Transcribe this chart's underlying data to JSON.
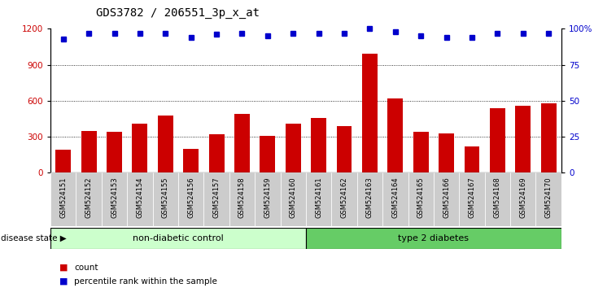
{
  "title": "GDS3782 / 206551_3p_x_at",
  "samples": [
    "GSM524151",
    "GSM524152",
    "GSM524153",
    "GSM524154",
    "GSM524155",
    "GSM524156",
    "GSM524157",
    "GSM524158",
    "GSM524159",
    "GSM524160",
    "GSM524161",
    "GSM524162",
    "GSM524163",
    "GSM524164",
    "GSM524165",
    "GSM524166",
    "GSM524167",
    "GSM524168",
    "GSM524169",
    "GSM524170"
  ],
  "counts": [
    190,
    350,
    340,
    410,
    480,
    200,
    320,
    490,
    310,
    410,
    460,
    390,
    990,
    620,
    340,
    330,
    220,
    540,
    560,
    580
  ],
  "percentiles": [
    93,
    97,
    97,
    97,
    97,
    94,
    96,
    97,
    95,
    97,
    97,
    97,
    100,
    98,
    95,
    94,
    94,
    97,
    97,
    97
  ],
  "group1_label": "non-diabetic control",
  "group1_count": 10,
  "group2_label": "type 2 diabetes",
  "group2_count": 10,
  "disease_state_label": "disease state",
  "bar_color": "#cc0000",
  "dot_color": "#0000cc",
  "ylim_left": [
    0,
    1200
  ],
  "ylim_right": [
    0,
    100
  ],
  "yticks_left": [
    0,
    300,
    600,
    900,
    1200
  ],
  "yticks_right": [
    0,
    25,
    50,
    75,
    100
  ],
  "tick_label_color_left": "#cc0000",
  "tick_label_color_right": "#0000cc",
  "legend_count_label": "count",
  "legend_pct_label": "percentile rank within the sample",
  "group1_color": "#ccffcc",
  "group2_color": "#66cc66",
  "xticklabel_bg": "#cccccc"
}
